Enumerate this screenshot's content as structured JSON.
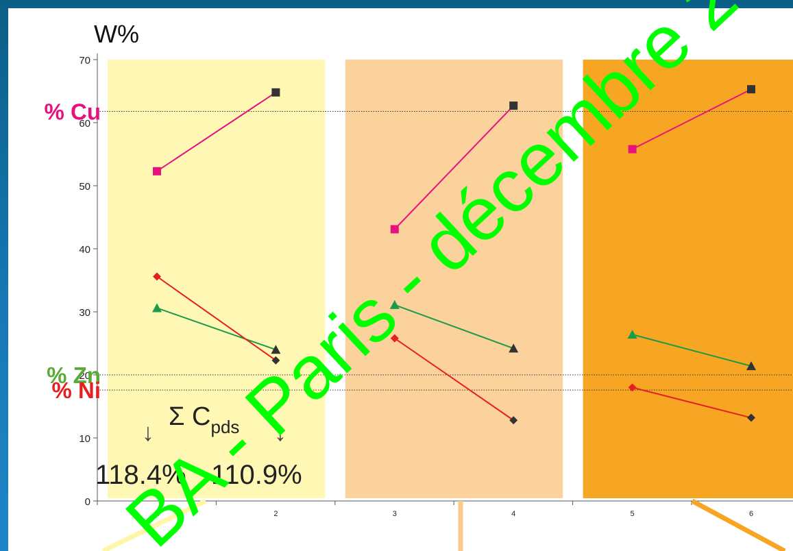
{
  "chart_data": {
    "type": "line",
    "ylabel": "W%",
    "ylim": [
      0,
      70
    ],
    "y_ticks": [
      "0",
      "10",
      "20",
      "30",
      "40",
      "50",
      "60",
      "70"
    ],
    "x": [
      1,
      2,
      3,
      4,
      5,
      6
    ],
    "x_ticks": [
      "1",
      "2",
      "3",
      "4",
      "5",
      "6"
    ],
    "groups": [
      {
        "x": [
          1,
          2
        ],
        "color": "#fff8b4"
      },
      {
        "x": [
          3,
          4
        ],
        "color": "#fbd19c"
      },
      {
        "x": [
          5,
          6
        ],
        "color": "#f6a623"
      }
    ],
    "series": [
      {
        "element": "Cu",
        "color": "#e6137f",
        "segments": [
          [
            [
              1,
              52.3
            ],
            [
              2,
              64.8
            ]
          ],
          [
            [
              3,
              43.1
            ],
            [
              4,
              62.7
            ]
          ],
          [
            [
              5,
              55.8
            ],
            [
              6,
              65.3
            ]
          ]
        ]
      },
      {
        "element": "Zn",
        "color": "#1a9a4a",
        "segments": [
          [
            [
              1,
              30.6
            ],
            [
              2,
              24.0
            ]
          ],
          [
            [
              3,
              31.1
            ],
            [
              4,
              24.2
            ]
          ],
          [
            [
              5,
              26.4
            ],
            [
              6,
              21.4
            ]
          ]
        ]
      },
      {
        "element": "Ni",
        "color": "#e62020",
        "segments": [
          [
            [
              1,
              35.6
            ],
            [
              2,
              22.3
            ]
          ],
          [
            [
              3,
              25.8
            ],
            [
              4,
              12.8
            ]
          ],
          [
            [
              5,
              18.0
            ],
            [
              6,
              13.2
            ]
          ]
        ]
      }
    ],
    "reference_lines": [
      {
        "label": "% Cu",
        "value": 61.8,
        "color": "#e6137f"
      },
      {
        "label": "% Zn",
        "value": 20.0,
        "color": "#5aaa38"
      },
      {
        "label": "% Ni",
        "value": 17.6,
        "color": "#e62020"
      }
    ],
    "annotation": {
      "sigma": "Σ C",
      "subscript": "pds",
      "values": [
        "118.4%",
        "110.9%"
      ],
      "arrow": "↓"
    },
    "watermark": "BA - Paris - décembre 2"
  },
  "style": {
    "point_end_color": "#333333",
    "watermark_color": "#00ff00"
  }
}
